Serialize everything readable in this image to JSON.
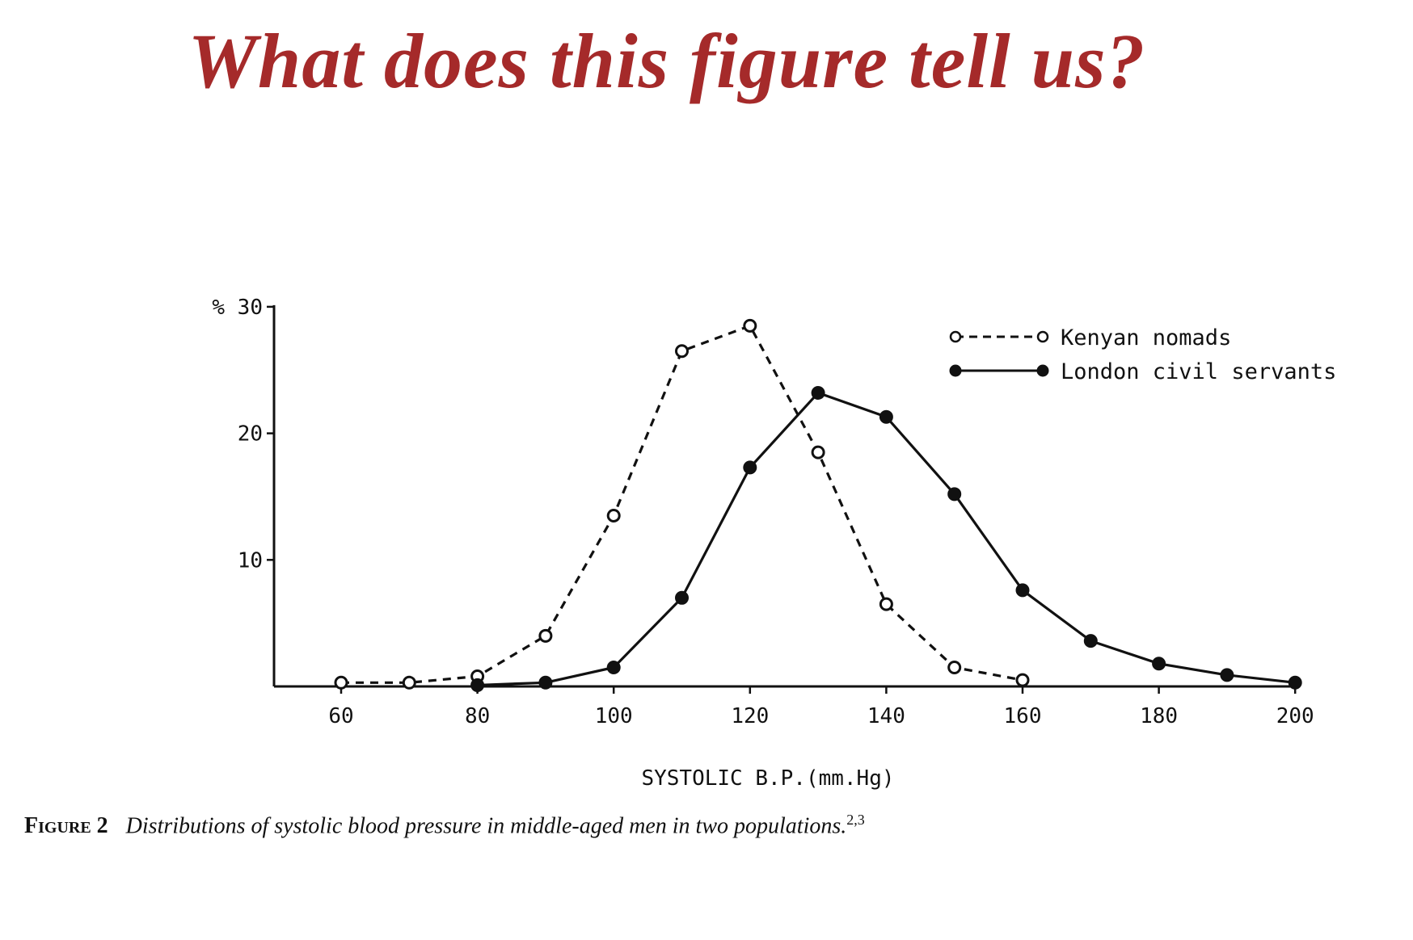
{
  "slide": {
    "title": "What does this figure tell us?",
    "title_color": "#a52a2a"
  },
  "caption": {
    "label": "Figure 2",
    "text": "Distributions of systolic blood pressure in middle-aged men in two populations.",
    "superscript": "2,3"
  },
  "chart_data": {
    "type": "line",
    "title": "",
    "xlabel": "SYSTOLIC B.P.(mm.Hg)",
    "ylabel": "%",
    "xlim": [
      50,
      200
    ],
    "ylim": [
      0,
      30
    ],
    "x_ticks": [
      60,
      80,
      100,
      120,
      140,
      160,
      180,
      200
    ],
    "y_ticks": [
      10,
      20,
      30
    ],
    "y_tick_labels": [
      "10",
      "20",
      "% 30"
    ],
    "grid": false,
    "legend_position": "upper right",
    "series": [
      {
        "name": "Kenyan nomads",
        "style": "dashed",
        "marker": "open-circle",
        "x": [
          60,
          70,
          80,
          90,
          100,
          110,
          120,
          130,
          140,
          150,
          160
        ],
        "values": [
          0.3,
          0.3,
          0.8,
          4.0,
          13.5,
          26.5,
          28.5,
          18.5,
          6.5,
          1.5,
          0.5
        ]
      },
      {
        "name": "London civil servants",
        "style": "solid",
        "marker": "filled-circle",
        "x": [
          80,
          90,
          100,
          110,
          120,
          130,
          140,
          150,
          160,
          170,
          180,
          190,
          200
        ],
        "values": [
          0.1,
          0.3,
          1.5,
          7.0,
          17.3,
          23.2,
          21.3,
          15.2,
          7.6,
          3.6,
          1.8,
          0.9,
          0.3
        ]
      }
    ]
  }
}
